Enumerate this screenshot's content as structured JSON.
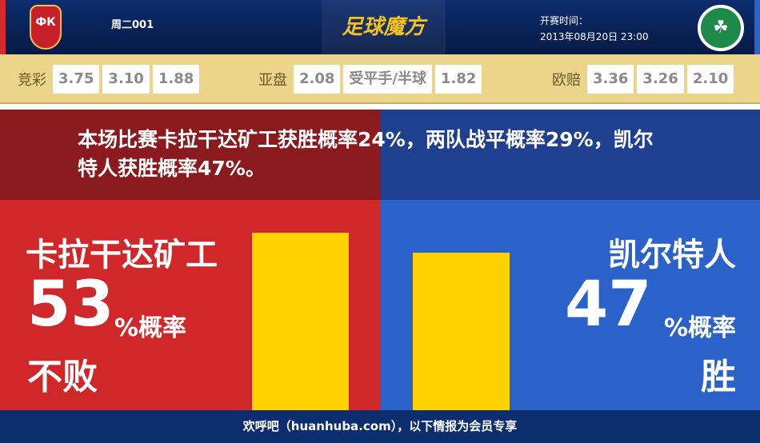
{
  "header": {
    "home_logo_text": "ФК",
    "away_logo_icon": "clover-icon",
    "match_code": "周二001",
    "brand": "足球魔方",
    "kickoff_label": "开赛时间：",
    "kickoff_time": "2013年08月20日 23:00"
  },
  "odds": {
    "jingcai": {
      "label": "竞彩",
      "values": [
        "3.75",
        "3.10",
        "1.88"
      ]
    },
    "asian": {
      "label": "亚盘",
      "values": [
        "2.08",
        "受平手/半球",
        "1.82"
      ]
    },
    "euro": {
      "label": "欧赔",
      "values": [
        "3.36",
        "3.26",
        "2.10"
      ]
    }
  },
  "summary": "本场比赛卡拉干达矿工获胜概率24%，两队战平概率29%，凯尔特人获胜概率47%。",
  "home": {
    "name": "卡拉干达矿工",
    "percent": "53",
    "unit": "%概率",
    "outcome": "不败",
    "value": 53,
    "color": "#d0272a"
  },
  "away": {
    "name": "凯尔特人",
    "percent": "47",
    "unit": "%概率",
    "outcome": "胜",
    "value": 47,
    "color": "#2a62c9"
  },
  "footer": "欢呼吧（huanhuba.com），以下情报为会员专享"
}
